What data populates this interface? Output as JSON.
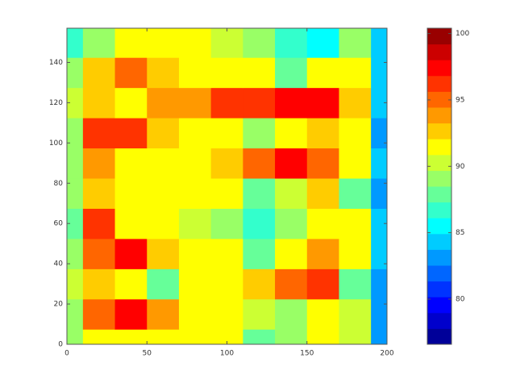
{
  "chart_data": {
    "type": "contourf",
    "x": [
      0,
      20,
      40,
      60,
      80,
      100,
      120,
      140,
      160,
      180,
      200
    ],
    "y": [
      0,
      15,
      30,
      45,
      60,
      75,
      90,
      105,
      120,
      135,
      150
    ],
    "z": [
      [
        89,
        91,
        92,
        91,
        92,
        91,
        88,
        89,
        92,
        90,
        83
      ],
      [
        89,
        95,
        97,
        94,
        92,
        91,
        90,
        89,
        92,
        90,
        83
      ],
      [
        90,
        93,
        92,
        88,
        91,
        92,
        93,
        95,
        96,
        88,
        83
      ],
      [
        89,
        95,
        97,
        93,
        92,
        91,
        88,
        92,
        94,
        91,
        84
      ],
      [
        88,
        96,
        92,
        91,
        90,
        89,
        87,
        89,
        92,
        91,
        84
      ],
      [
        89,
        93,
        91,
        91,
        92,
        91,
        88,
        90,
        93,
        88,
        83
      ],
      [
        89,
        94,
        91,
        91,
        91,
        93,
        95,
        97,
        95,
        92,
        84
      ],
      [
        89,
        96,
        96,
        93,
        92,
        92,
        89,
        91,
        93,
        92,
        83
      ],
      [
        90,
        93,
        92,
        94,
        94,
        96,
        96,
        98,
        98,
        93,
        84
      ],
      [
        89,
        93,
        95,
        93,
        92,
        91,
        91,
        88,
        92,
        92,
        84
      ],
      [
        87,
        89,
        91,
        92,
        91,
        90,
        89,
        87,
        86,
        89,
        84
      ]
    ],
    "xlim": [
      0,
      200
    ],
    "xticks": [
      0,
      50,
      100,
      150,
      200
    ],
    "ylim": [
      0,
      157
    ],
    "yticks": [
      0,
      20,
      40,
      60,
      80,
      100,
      120,
      140
    ],
    "colormap": "jet",
    "clim": [
      76.6,
      100.4
    ],
    "n_levels": 20,
    "cticks": [
      80,
      85,
      90,
      95,
      100
    ]
  }
}
